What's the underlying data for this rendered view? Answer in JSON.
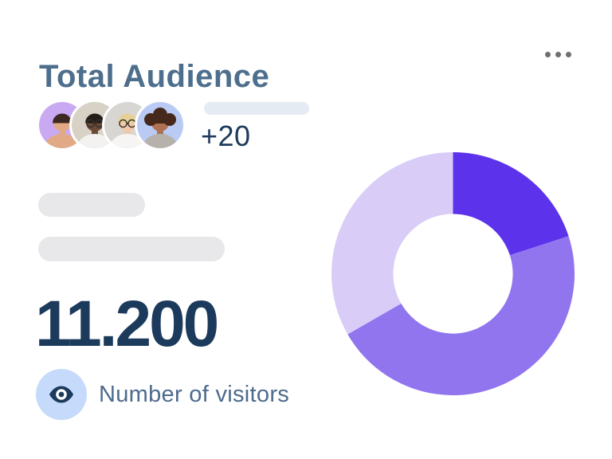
{
  "card": {
    "title": "Total Audience",
    "menu": {
      "icon": "ellipsis-horizontal-icon",
      "label": "card options"
    },
    "avatar_group": {
      "extra_count": "+20",
      "avatars": [
        {
          "label": "woman dark hair lavender background",
          "bg": "#c9a9f1",
          "skin": "#e2a987",
          "hair": "#3c2820",
          "shirt": "#e2a987",
          "glasses": false,
          "curly": false
        },
        {
          "label": "man with glasses beige background",
          "bg": "#d8d1c6",
          "skin": "#6a4937",
          "hair": "#241c16",
          "shirt": "#f3f2f0",
          "glasses": true,
          "curly": false
        },
        {
          "label": "blonde woman with glasses gray background",
          "bg": "#d7d6d3",
          "skin": "#f0c9a8",
          "hair": "#e6d096",
          "shirt": "#f6f5f3",
          "glasses": true,
          "curly": false
        },
        {
          "label": "woman curly hair blue background",
          "bg": "#b9cbf4",
          "skin": "#b07053",
          "hair": "#46291a",
          "shirt": "#b6b1ab",
          "glasses": false,
          "curly": true
        }
      ]
    },
    "total_visitors": "11.200",
    "visitors": {
      "icon": "eye-icon",
      "label": "Number of visitors"
    }
  },
  "colors": {
    "title_slate": "#4e6e8d",
    "metric_navy": "#1c3a5c",
    "label_slate": "#4d6b8c",
    "menu_dot_gray": "#6f6f6f",
    "skeleton_blue_gray": "#e4ebf3",
    "skeleton_gray": "#e8e8ea",
    "eye_badge_blue": "#c6dafb",
    "card_background": "#ffffff"
  },
  "chart_data": {
    "type": "donut",
    "description": "Audience share donut, no labels shown; percentages estimated from segment angles",
    "start_angle_deg": 0,
    "direction": "clockwise",
    "inner_radius_ratio": 0.492,
    "segments": [
      {
        "name": "segment-dark-purple",
        "percent": 20.0,
        "angle_deg": 72,
        "color": "#5c33ea"
      },
      {
        "name": "segment-medium-purple",
        "percent": 46.7,
        "angle_deg": 168,
        "color": "#9175ee"
      },
      {
        "name": "segment-light-lavender",
        "percent": 33.3,
        "angle_deg": 120,
        "color": "#d9cdf8"
      }
    ]
  }
}
